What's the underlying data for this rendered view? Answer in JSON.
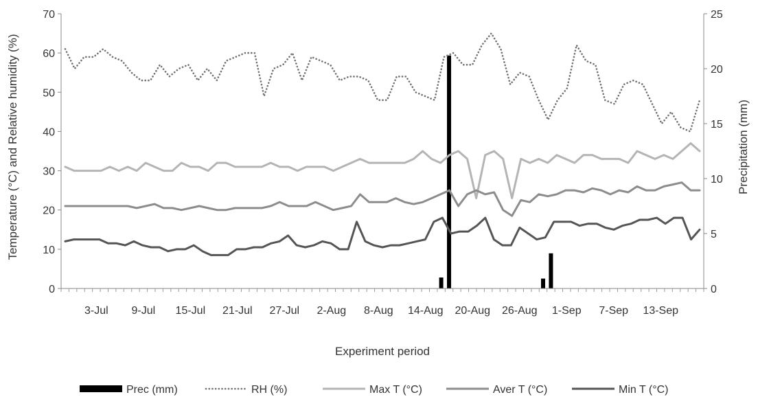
{
  "chart_data": {
    "type": "line",
    "title": "",
    "xlabel": "Experiment period",
    "ylabel_left": "Temperature (°C) and Relative humidity (%)",
    "ylabel_right": "Precipitation (mm)",
    "ylim_left": [
      0,
      70
    ],
    "ylim_right": [
      0,
      25
    ],
    "yticks_left": [
      "0",
      "10",
      "20",
      "30",
      "40",
      "50",
      "60",
      "70"
    ],
    "yticks_right": [
      "0",
      "5",
      "10",
      "15",
      "20",
      "25"
    ],
    "x_start": "2018-06-29",
    "x_days": 82,
    "x_tick_labels": [
      {
        "label": "3-Jul",
        "day": 4
      },
      {
        "label": "9-Jul",
        "day": 10
      },
      {
        "label": "15-Jul",
        "day": 16
      },
      {
        "label": "21-Jul",
        "day": 22
      },
      {
        "label": "27-Jul",
        "day": 28
      },
      {
        "label": "2-Aug",
        "day": 34
      },
      {
        "label": "8-Aug",
        "day": 40
      },
      {
        "label": "14-Aug",
        "day": 46
      },
      {
        "label": "20-Aug",
        "day": 52
      },
      {
        "label": "26-Aug",
        "day": 58
      },
      {
        "label": "1-Sep",
        "day": 64
      },
      {
        "label": "7-Sep",
        "day": 70
      },
      {
        "label": "13-Sep",
        "day": 76
      }
    ],
    "legend_position": "bottom",
    "precipitation": {
      "name": "Prec (mm)",
      "color": "#000000",
      "points": [
        {
          "day": 48,
          "value": 1
        },
        {
          "day": 49,
          "value": 21.2
        },
        {
          "day": 61,
          "value": 0.9
        },
        {
          "day": 62,
          "value": 3.2
        }
      ]
    },
    "series": [
      {
        "name": "RH (%)",
        "color": "#707070",
        "style": "dotted",
        "values": [
          61,
          56,
          59,
          59,
          61,
          59,
          58,
          55,
          53,
          53,
          57,
          54,
          56,
          57,
          53,
          56,
          53,
          58,
          59,
          60,
          60,
          49,
          56,
          57,
          60,
          53,
          59,
          58,
          57,
          53,
          54,
          54,
          53,
          48,
          48,
          54,
          54,
          50,
          49,
          48,
          59,
          60,
          57,
          57,
          62,
          65,
          61,
          52,
          55,
          54,
          48,
          43,
          48,
          51,
          62,
          58,
          57,
          48,
          47,
          52,
          53,
          52,
          47,
          42,
          45,
          41,
          40,
          48
        ]
      },
      {
        "name": "Max T (°C)",
        "color": "#b4b4b4",
        "style": "solid",
        "values": [
          31,
          30,
          30,
          30,
          30,
          31,
          30,
          31,
          30,
          32,
          31,
          30,
          30,
          32,
          31,
          31,
          30,
          32,
          32,
          31,
          31,
          31,
          31,
          32,
          31,
          31,
          30,
          31,
          31,
          31,
          30,
          31,
          32,
          33,
          32,
          32,
          32,
          32,
          32,
          33,
          35,
          33,
          32,
          34,
          35,
          33,
          23,
          34,
          35,
          33,
          23,
          33,
          32,
          33,
          32,
          34,
          33,
          32,
          34,
          34,
          33,
          33,
          33,
          32,
          35,
          34,
          33,
          34,
          33,
          35,
          37,
          35
        ]
      },
      {
        "name": "Aver T (°C)",
        "color": "#8c8c8c",
        "style": "solid",
        "values": [
          21,
          21,
          21,
          21,
          21,
          21,
          21,
          21,
          20.5,
          21,
          21.5,
          20.5,
          20.5,
          20,
          20.5,
          21,
          20.5,
          20,
          20,
          20.5,
          20.5,
          20.5,
          20.5,
          21,
          22,
          21,
          21,
          21,
          22,
          21,
          20,
          20.5,
          21,
          24,
          22,
          22,
          22,
          23,
          22,
          21.5,
          22,
          23,
          24,
          25,
          21,
          24,
          25,
          24,
          24.5,
          20,
          18.5,
          22.5,
          22,
          24,
          23.5,
          24,
          25,
          25,
          24.5,
          25.5,
          25,
          24,
          25,
          24.5,
          26,
          25,
          25,
          26,
          26.5,
          27,
          25,
          25
        ]
      },
      {
        "name": "Min T (°C)",
        "color": "#555555",
        "style": "solid",
        "values": [
          12,
          12.5,
          12.5,
          12.5,
          12.5,
          11.5,
          11.5,
          11,
          12,
          11,
          10.5,
          10.5,
          9.5,
          10,
          10,
          11,
          9.5,
          8.5,
          8.5,
          8.5,
          10,
          10,
          10.5,
          10.5,
          11.5,
          12,
          13.5,
          11,
          10.5,
          11,
          12,
          11.5,
          10,
          10,
          17,
          12,
          11,
          10.5,
          11,
          11,
          11.5,
          12,
          12.5,
          17,
          18,
          14,
          14.5,
          14.5,
          16,
          18,
          12.5,
          11,
          11,
          15.5,
          14,
          12.5,
          13,
          17,
          17,
          17,
          16,
          16.5,
          16.5,
          15.5,
          15,
          16,
          16.5,
          17.5,
          17.5,
          18,
          16.5,
          18,
          18,
          12.5,
          15
        ]
      }
    ]
  }
}
